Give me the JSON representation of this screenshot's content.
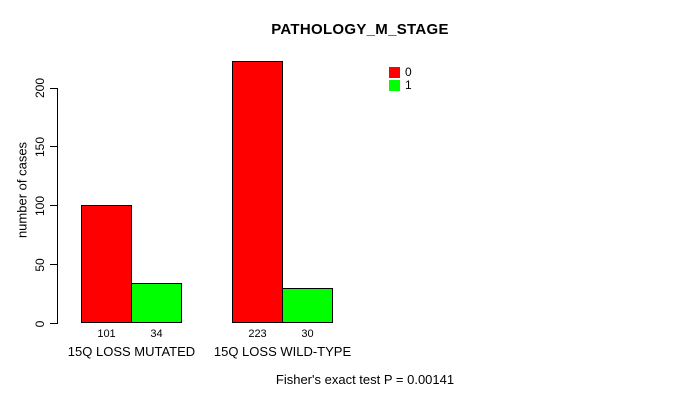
{
  "chart_data": {
    "type": "bar",
    "title": "PATHOLOGY_M_STAGE",
    "xlabel": "",
    "ylabel": "number of cases",
    "ylim": [
      0,
      200
    ],
    "yticks": [
      0,
      50,
      100,
      150,
      200
    ],
    "grid": false,
    "categories": [
      "15Q LOSS MUTATED",
      "15Q LOSS WILD-TYPE"
    ],
    "series": [
      {
        "name": "0",
        "color": "#ff0000",
        "values": [
          101,
          223
        ]
      },
      {
        "name": "1",
        "color": "#00ff00",
        "values": [
          34,
          30
        ]
      }
    ],
    "value_labels": [
      [
        "101",
        "34"
      ],
      [
        "223",
        "30"
      ]
    ],
    "legend": {
      "position": "top-right",
      "entries": [
        {
          "label": "0",
          "color": "#ff0000"
        },
        {
          "label": "1",
          "color": "#00ff00"
        }
      ]
    },
    "annotation": "Fisher's exact test P = 0.00141"
  },
  "colors": {
    "background": "#ffffff",
    "bar_border": "#000000",
    "text": "#000000"
  }
}
